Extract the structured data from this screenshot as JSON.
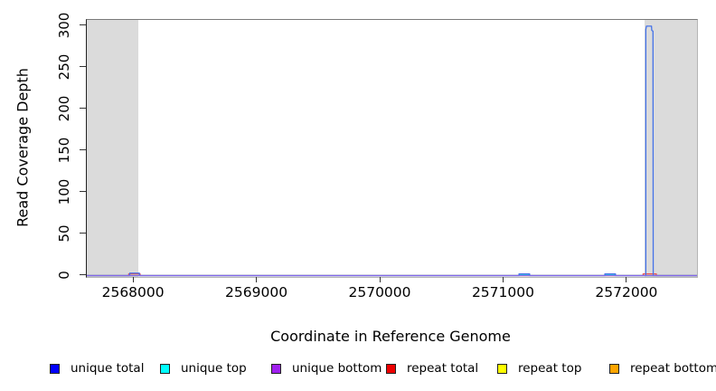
{
  "chart_data": {
    "type": "line",
    "title": "",
    "xlabel": "Coordinate in Reference Genome",
    "ylabel": "Read Coverage Depth",
    "xlim": [
      2567618,
      2572565
    ],
    "ylim": [
      0,
      307
    ],
    "grid": false,
    "legend_position": "bottom",
    "x_ticks": [
      2568000,
      2569000,
      2570000,
      2571000,
      2572000
    ],
    "x_tick_labels": [
      "2568000",
      "2569000",
      "2570000",
      "2571000",
      "2572000"
    ],
    "y_ticks": [
      0,
      50,
      100,
      150,
      200,
      250,
      300
    ],
    "y_tick_labels": [
      "0",
      "50",
      "100",
      "150",
      "200",
      "250",
      "300"
    ],
    "band_color": "#dbdbdb",
    "shaded_bands": [
      {
        "x_start": 2567618,
        "x_end": 2568036
      },
      {
        "x_start": 2572140,
        "x_end": 2572565
      }
    ],
    "draw_order": [
      4,
      5,
      3,
      1,
      0,
      2
    ],
    "series": [
      {
        "name": "unique total",
        "legend_color": "#0000ff",
        "plot_color": "#4472e8",
        "points": [
          [
            2567618,
            0
          ],
          [
            2567966,
            0
          ],
          [
            2567966,
            3
          ],
          [
            2568044,
            3
          ],
          [
            2568044,
            0
          ],
          [
            2571122,
            0
          ],
          [
            2571122,
            2
          ],
          [
            2571208,
            2
          ],
          [
            2571208,
            0
          ],
          [
            2571818,
            0
          ],
          [
            2571818,
            2
          ],
          [
            2571904,
            2
          ],
          [
            2571904,
            0
          ],
          [
            2572150,
            0
          ],
          [
            2572150,
            296
          ],
          [
            2572155,
            300
          ],
          [
            2572196,
            300
          ],
          [
            2572198,
            295
          ],
          [
            2572208,
            294
          ],
          [
            2572210,
            0
          ],
          [
            2572565,
            0
          ]
        ]
      },
      {
        "name": "unique top",
        "legend_color": "#00ffff",
        "plot_color": "#2ad8d8",
        "points": [
          [
            2567618,
            0
          ],
          [
            2571130,
            0
          ],
          [
            2571130,
            1
          ],
          [
            2571200,
            1
          ],
          [
            2571200,
            0
          ],
          [
            2571826,
            0
          ],
          [
            2571826,
            1
          ],
          [
            2571896,
            1
          ],
          [
            2571896,
            0
          ],
          [
            2572565,
            0
          ]
        ]
      },
      {
        "name": "unique bottom",
        "legend_color": "#a020f0",
        "plot_color": "#8468ec",
        "points": [
          [
            2567618,
            0
          ],
          [
            2572565,
            0
          ]
        ]
      },
      {
        "name": "repeat total",
        "legend_color": "#ee0000",
        "plot_color": "#f05050",
        "points": [
          [
            2567618,
            0
          ],
          [
            2567958,
            0
          ],
          [
            2567958,
            2
          ],
          [
            2568050,
            2
          ],
          [
            2568050,
            0
          ],
          [
            2572128,
            0
          ],
          [
            2572128,
            2
          ],
          [
            2572235,
            2
          ],
          [
            2572235,
            0
          ],
          [
            2572565,
            0
          ]
        ]
      },
      {
        "name": "repeat top",
        "legend_color": "#ffff00",
        "plot_color": "#e8e84a",
        "points": [
          [
            2567618,
            0
          ],
          [
            2572565,
            0
          ]
        ]
      },
      {
        "name": "repeat bottom",
        "legend_color": "#ffa500",
        "plot_color": "#f0a830",
        "points": [
          [
            2567618,
            0
          ],
          [
            2572565,
            0
          ]
        ]
      }
    ]
  }
}
